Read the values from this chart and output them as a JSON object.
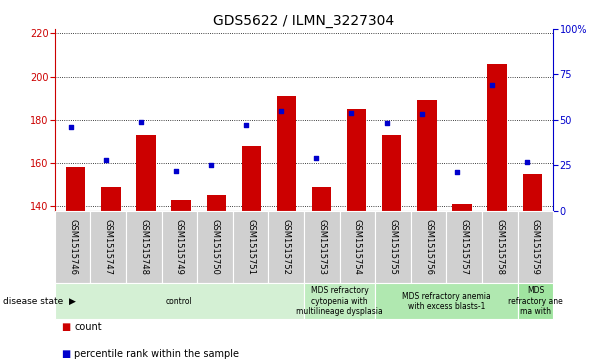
{
  "title": "GDS5622 / ILMN_3227304",
  "samples": [
    "GSM1515746",
    "GSM1515747",
    "GSM1515748",
    "GSM1515749",
    "GSM1515750",
    "GSM1515751",
    "GSM1515752",
    "GSM1515753",
    "GSM1515754",
    "GSM1515755",
    "GSM1515756",
    "GSM1515757",
    "GSM1515758",
    "GSM1515759"
  ],
  "counts": [
    158,
    149,
    173,
    143,
    145,
    168,
    191,
    149,
    185,
    173,
    189,
    141,
    206,
    155
  ],
  "percentile_ranks": [
    46,
    28,
    49,
    22,
    25,
    47,
    55,
    29,
    54,
    48,
    53,
    21,
    69,
    27
  ],
  "ylim_left": [
    138,
    222
  ],
  "ylim_right": [
    0,
    100
  ],
  "yticks_left": [
    140,
    160,
    180,
    200,
    220
  ],
  "yticks_right": [
    0,
    25,
    50,
    75,
    100
  ],
  "bar_color": "#cc0000",
  "dot_color": "#0000cc",
  "grid_color": "#000000",
  "bg_color": "#ffffff",
  "tick_bg": "#d0d0d0",
  "disease_groups": [
    {
      "label": "control",
      "start": 0,
      "end": 7,
      "color": "#d4f0d4"
    },
    {
      "label": "MDS refractory\ncytopenia with\nmultilineage dysplasia",
      "start": 7,
      "end": 9,
      "color": "#c0ecc0"
    },
    {
      "label": "MDS refractory anemia\nwith excess blasts-1",
      "start": 9,
      "end": 13,
      "color": "#b0e8b0"
    },
    {
      "label": "MDS\nrefractory ane\nma with",
      "start": 13,
      "end": 14,
      "color": "#a0e4a0"
    }
  ],
  "title_fontsize": 10,
  "tick_fontsize": 7,
  "sample_fontsize": 6,
  "disease_fontsize": 5.5,
  "legend_fontsize": 7
}
